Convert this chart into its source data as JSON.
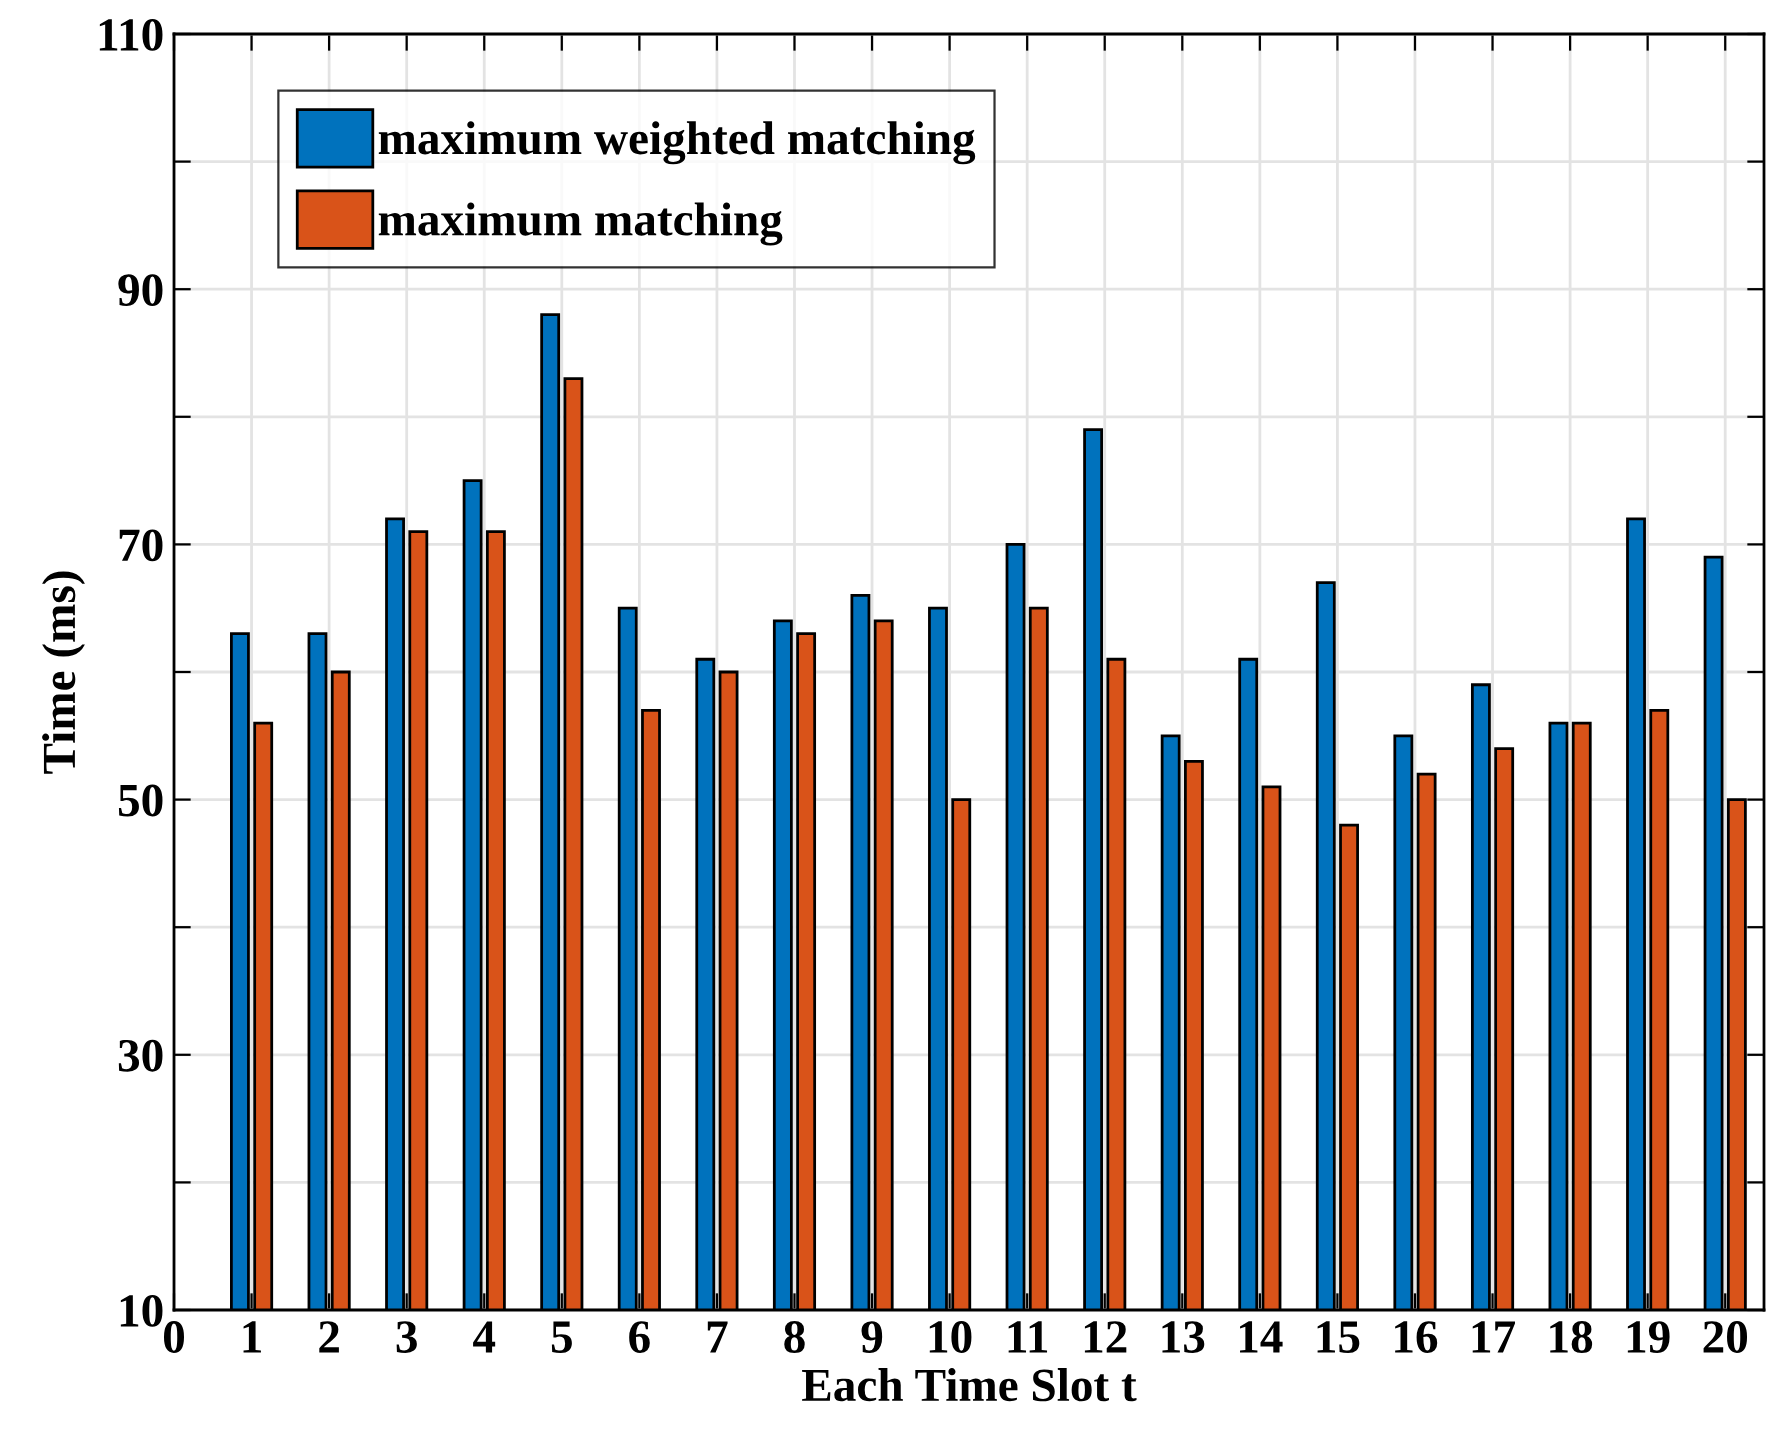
{
  "chart_data": {
    "type": "bar",
    "xlabel": "Each Time Slot t",
    "ylabel": "Time (ms)",
    "x": [
      1,
      2,
      3,
      4,
      5,
      6,
      7,
      8,
      9,
      10,
      11,
      12,
      13,
      14,
      15,
      16,
      17,
      18,
      19,
      20
    ],
    "series": [
      {
        "name": "maximum weighted matching",
        "color": "#0072bd",
        "values": [
          63,
          63,
          72,
          75,
          88,
          65,
          61,
          64,
          66,
          65,
          70,
          79,
          55,
          61,
          67,
          55,
          59,
          56,
          72,
          69
        ]
      },
      {
        "name": "maximum matching",
        "color": "#d95319",
        "values": [
          56,
          60,
          71,
          71,
          83,
          57,
          60,
          63,
          64,
          50,
          65,
          61,
          53,
          51,
          48,
          52,
          54,
          56,
          57,
          50
        ]
      }
    ],
    "xlim": [
      0,
      20.5
    ],
    "xticks": [
      0,
      1,
      2,
      3,
      4,
      5,
      6,
      7,
      8,
      9,
      10,
      11,
      12,
      13,
      14,
      15,
      16,
      17,
      18,
      19,
      20
    ],
    "ylim": [
      10,
      110
    ],
    "yticks": [
      10,
      {
        "value": 20,
        "label": null
      },
      30,
      {
        "value": 40,
        "label": null
      },
      50,
      {
        "value": 60,
        "label": null
      },
      70,
      {
        "value": 80,
        "label": null
      },
      90,
      {
        "value": 100,
        "label": null
      },
      110
    ],
    "grid": true,
    "legend": "top left"
  }
}
